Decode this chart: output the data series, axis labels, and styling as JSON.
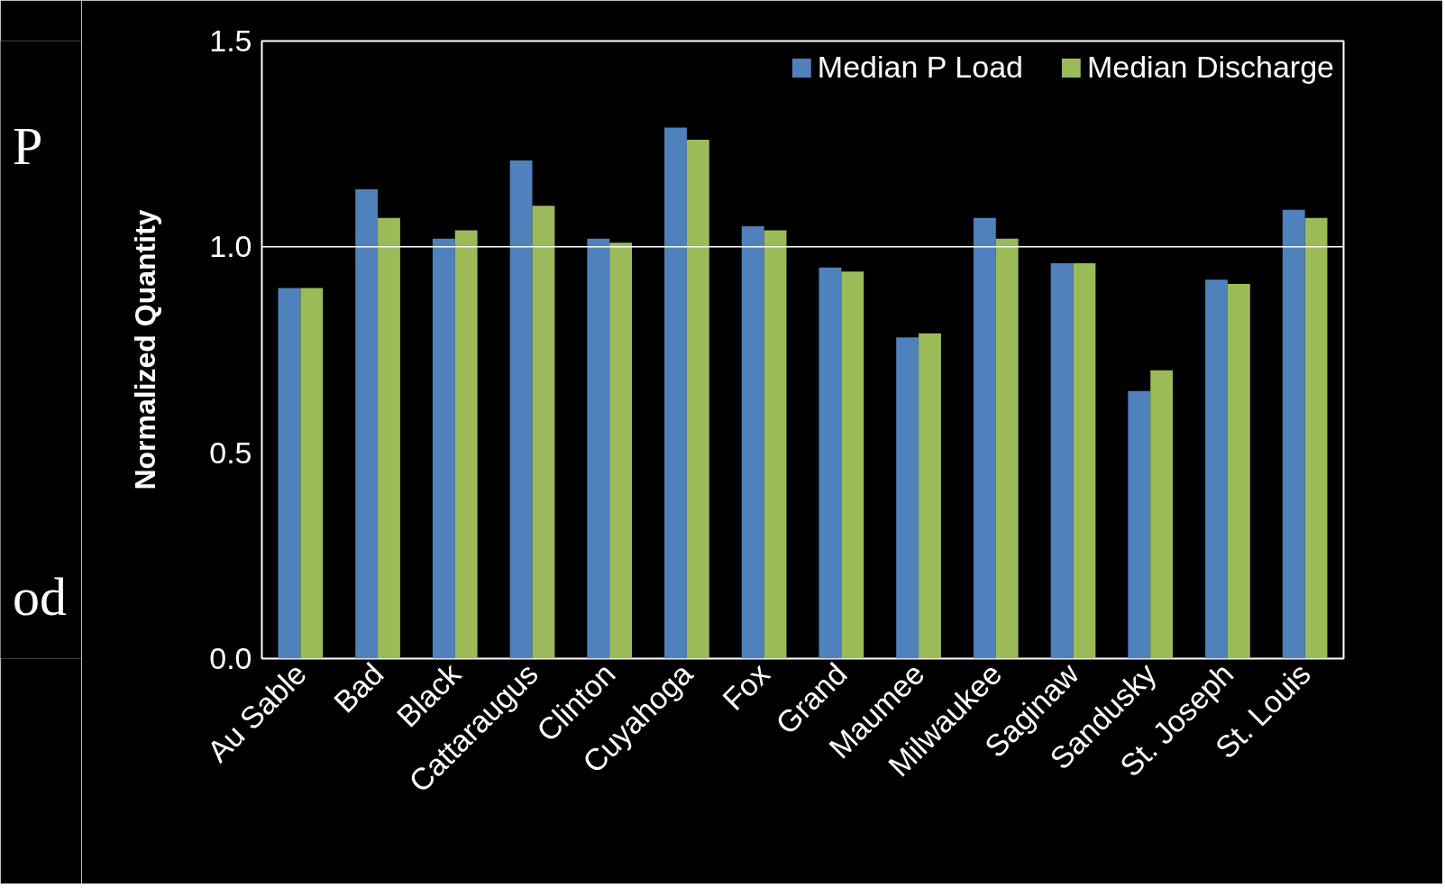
{
  "chart_data": {
    "type": "bar",
    "ylabel": "Normalized Quantity",
    "categories": [
      "Au Sable",
      "Bad",
      "Black",
      "Cattaraugus",
      "Clinton",
      "Cuyahoga",
      "Fox",
      "Grand",
      "Maumee",
      "Milwaukee",
      "Saginaw",
      "Sandusky",
      "St. Joseph",
      "St. Louis"
    ],
    "series": [
      {
        "name": "Median P Load",
        "color": "#4f81bd",
        "values": [
          0.9,
          1.14,
          1.02,
          1.21,
          1.02,
          1.29,
          1.05,
          0.95,
          0.78,
          1.07,
          0.96,
          0.65,
          0.92,
          1.09
        ]
      },
      {
        "name": "Median Discharge",
        "color": "#9bbb59",
        "values": [
          0.9,
          1.07,
          1.04,
          1.1,
          1.01,
          1.26,
          1.04,
          0.94,
          0.79,
          1.02,
          0.96,
          0.7,
          0.91,
          1.07
        ]
      }
    ],
    "ylim": [
      0,
      1.5
    ],
    "yticks": [
      {
        "value": 0,
        "label": "0.0"
      },
      0.5,
      {
        "value": 1,
        "label": "1.0"
      },
      1.5
    ],
    "ref_lines": [
      {
        "axis": "y",
        "value": 1,
        "color": "#ffffff"
      }
    ],
    "grid": false,
    "legend": "top right",
    "annotations": [
      "P",
      "od"
    ]
  }
}
